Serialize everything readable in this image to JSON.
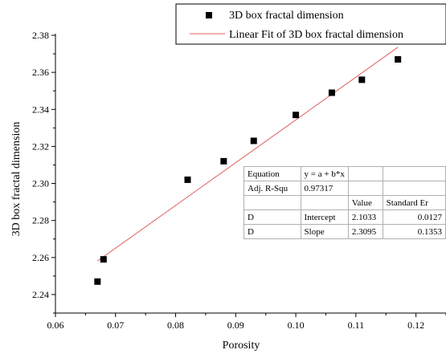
{
  "chart_data": {
    "type": "scatter",
    "title": "",
    "xlabel": "Porosity",
    "ylabel": "3D box fractal dimension",
    "xlim": [
      0.06,
      0.125
    ],
    "ylim": [
      2.23,
      2.38
    ],
    "xticks": [
      "0.06",
      "0.07",
      "0.08",
      "0.09",
      "0.10",
      "0.11",
      "0.12"
    ],
    "yticks": [
      "2.24",
      "2.26",
      "2.28",
      "2.30",
      "2.32",
      "2.34",
      "2.36",
      "2.38"
    ],
    "grid": false,
    "legend_position": "top-right",
    "series": [
      {
        "name": "3D box fractal dimension",
        "kind": "scatter",
        "marker": "square",
        "color": "#000000",
        "x": [
          0.067,
          0.068,
          0.082,
          0.088,
          0.093,
          0.1,
          0.106,
          0.111,
          0.117
        ],
        "y": [
          2.247,
          2.259,
          2.302,
          2.312,
          2.323,
          2.337,
          2.349,
          2.356,
          2.367
        ]
      },
      {
        "name": "Linear Fit of 3D box fractal dimension",
        "kind": "line",
        "color": "#e06060",
        "x": [
          0.067,
          0.117
        ],
        "y": [
          2.2581,
          2.3736
        ]
      }
    ],
    "fit_table": {
      "rows": [
        [
          "Equation",
          "y = a + b*x",
          "",
          ""
        ],
        [
          "Adj. R-Squ",
          "0.97317",
          "",
          ""
        ],
        [
          "",
          "",
          "Value",
          "Standard Er"
        ],
        [
          "D",
          "Intercept",
          "2.1033",
          "0.0127"
        ],
        [
          "D",
          "Slope",
          "2.3095",
          "0.1353"
        ]
      ]
    }
  }
}
